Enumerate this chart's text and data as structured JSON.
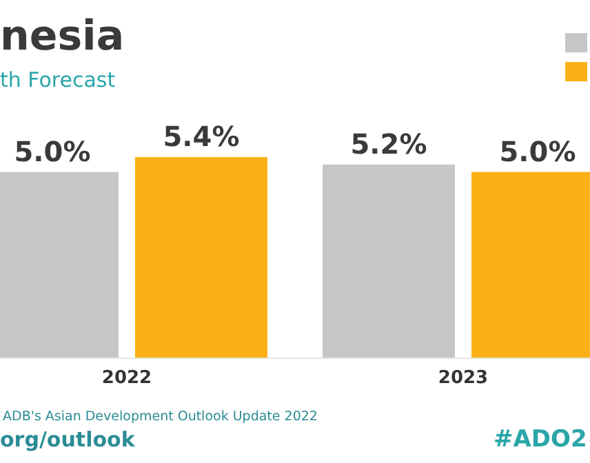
{
  "chart_data": {
    "type": "bar",
    "title": "nesia",
    "subtitle": "th Forecast",
    "categories": [
      "2022",
      "2023"
    ],
    "series": [
      {
        "color": "#c4c6c8",
        "values": [
          5.0,
          5.2
        ],
        "value_labels": [
          "5.0%",
          "5.2%"
        ]
      },
      {
        "color": "#fbb116",
        "values": [
          5.4,
          5.0
        ],
        "value_labels": [
          "5.4%",
          "5.0%"
        ]
      }
    ],
    "annotations": [
      "ADB's Asian Development Outlook Update 2022",
      "org/outlook",
      "#ADO2"
    ]
  }
}
